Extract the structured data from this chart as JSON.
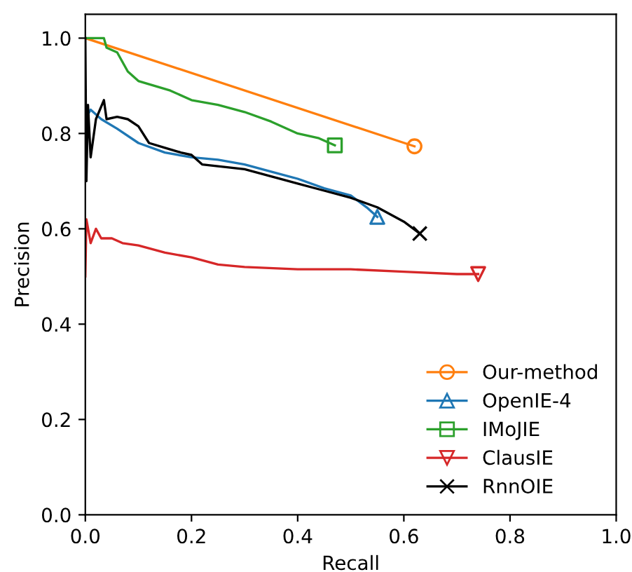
{
  "chart_data": {
    "type": "line",
    "xlabel": "Recall",
    "ylabel": "Precision",
    "xlim": [
      0.0,
      1.0
    ],
    "ylim": [
      0.0,
      1.05
    ],
    "xticks": [
      {
        "value": 0,
        "label": "0.0"
      },
      0.2,
      0.4,
      0.6,
      0.8,
      {
        "value": 1,
        "label": "1.0"
      }
    ],
    "yticks": [
      {
        "value": 0,
        "label": "0.0"
      },
      0.2,
      0.4,
      0.6,
      0.8,
      {
        "value": 1,
        "label": "1.0"
      }
    ],
    "legend": "bottom right",
    "series": [
      {
        "name": "Our-method",
        "color": "#ff7f0e",
        "x": [
          0,
          0.62
        ],
        "values": [
          1.0,
          0.773
        ]
      },
      {
        "type": "scatter",
        "color": "#ff7f0e",
        "marker": "circle",
        "x": [
          0.62
        ],
        "values": [
          0.773
        ]
      },
      {
        "name": "OpenIE-4",
        "color": "#1f77b4",
        "x": [
          0,
          0.01,
          0.03,
          0.06,
          0.1,
          0.15,
          0.2,
          0.25,
          0.3,
          0.35,
          0.4,
          0.45,
          0.5,
          0.53,
          0.55
        ],
        "values": [
          0.83,
          0.85,
          0.83,
          0.81,
          0.78,
          0.76,
          0.75,
          0.745,
          0.735,
          0.72,
          0.705,
          0.685,
          0.67,
          0.645,
          0.625
        ]
      },
      {
        "type": "scatter",
        "color": "#1f77b4",
        "marker": "triangle",
        "x": [
          0.55
        ],
        "values": [
          0.625
        ]
      },
      {
        "name": "IMoJIE",
        "color": "#2ca02c",
        "x": [
          0,
          0.035,
          0.04,
          0.06,
          0.08,
          0.1,
          0.13,
          0.16,
          0.2,
          0.25,
          0.3,
          0.35,
          0.4,
          0.44,
          0.47
        ],
        "values": [
          1.0,
          1.0,
          0.98,
          0.97,
          0.93,
          0.91,
          0.9,
          0.89,
          0.87,
          0.86,
          0.845,
          0.825,
          0.8,
          0.79,
          0.775
        ]
      },
      {
        "type": "scatter",
        "color": "#2ca02c",
        "marker": "square",
        "x": [
          0.47
        ],
        "values": [
          0.775
        ]
      },
      {
        "name": "ClausIE",
        "color": "#d62728",
        "x": [
          0,
          0.002,
          0.01,
          0.02,
          0.03,
          0.05,
          0.07,
          0.1,
          0.15,
          0.2,
          0.25,
          0.3,
          0.4,
          0.5,
          0.6,
          0.7,
          0.74
        ],
        "values": [
          0.5,
          0.62,
          0.57,
          0.6,
          0.58,
          0.58,
          0.57,
          0.565,
          0.55,
          0.54,
          0.525,
          0.52,
          0.515,
          0.515,
          0.51,
          0.505,
          0.505
        ]
      },
      {
        "type": "scatter",
        "color": "#d62728",
        "marker": "triangle_down",
        "x": [
          0.74
        ],
        "values": [
          0.505
        ]
      },
      {
        "name": "RnnOIE",
        "color": "#000000",
        "x": [
          0,
          0.002,
          0.005,
          0.01,
          0.02,
          0.035,
          0.04,
          0.06,
          0.08,
          0.1,
          0.12,
          0.15,
          0.18,
          0.2,
          0.22,
          0.3,
          0.35,
          0.4,
          0.45,
          0.5,
          0.55,
          0.6,
          0.63
        ],
        "values": [
          1.0,
          0.7,
          0.86,
          0.75,
          0.83,
          0.87,
          0.83,
          0.835,
          0.83,
          0.815,
          0.78,
          0.77,
          0.76,
          0.755,
          0.735,
          0.725,
          0.71,
          0.695,
          0.68,
          0.665,
          0.645,
          0.615,
          0.59
        ]
      },
      {
        "type": "scatter",
        "color": "#000000",
        "marker": "cross",
        "x": [
          0.63
        ],
        "values": [
          0.59
        ]
      }
    ]
  }
}
